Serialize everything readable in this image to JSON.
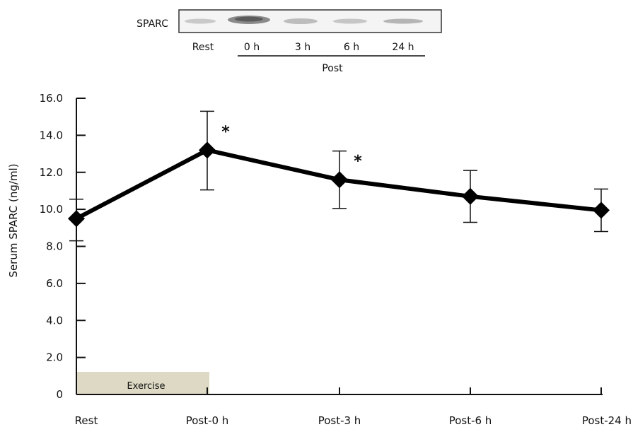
{
  "blot": {
    "protein_label": "SPARC",
    "lane_labels": [
      "Rest",
      "0 h",
      "3 h",
      "6 h",
      "24 h"
    ],
    "group_label": "Post"
  },
  "chart_data": {
    "type": "line",
    "categories": [
      "Rest",
      "Post-0 h",
      "Post-3 h",
      "Post-6 h",
      "Post-24 h"
    ],
    "series": [
      {
        "values": [
          9.5,
          13.2,
          11.6,
          10.7,
          9.95
        ],
        "error_high": [
          10.55,
          15.3,
          13.15,
          12.1,
          11.1
        ],
        "error_low": [
          8.3,
          11.05,
          10.05,
          9.3,
          8.8
        ]
      }
    ],
    "ylabel": "Serum SPARC (ng/ml)",
    "ylim": [
      0,
      16
    ],
    "yticks": [
      "0",
      "2.0",
      "4.0",
      "6.0",
      "8.0",
      "10.0",
      "12.0",
      "14.0",
      "16.0"
    ],
    "significance": [
      {
        "category": "Post-0 h",
        "mark": "*"
      },
      {
        "category": "Post-3 h",
        "mark": "*"
      }
    ],
    "exercise_period": {
      "label": "Exercise",
      "from": "Rest",
      "to": "Post-0 h"
    },
    "grid": false,
    "colors": {
      "line": "#000000",
      "exercise_bar": "#ddd9c4"
    }
  }
}
